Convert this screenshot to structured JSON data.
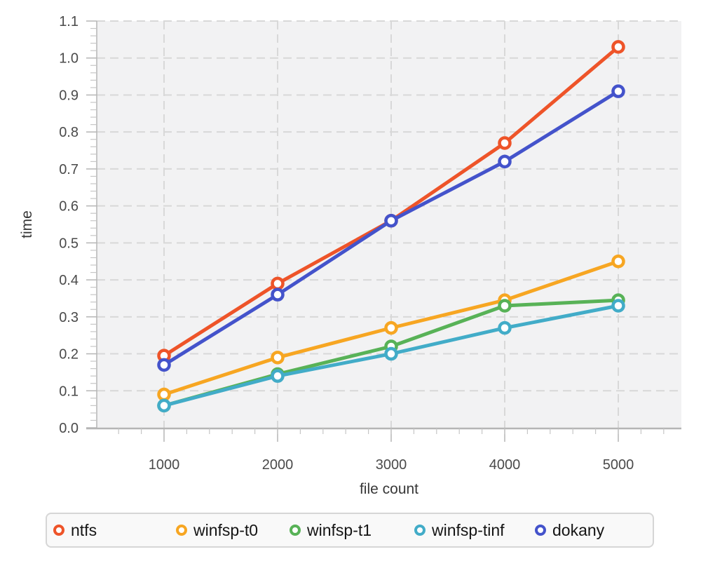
{
  "chart_data": {
    "type": "line",
    "title": "",
    "xlabel": "file count",
    "ylabel": "time",
    "x": [
      1000,
      2000,
      3000,
      4000,
      5000
    ],
    "xticklabels": [
      "1000",
      "2000",
      "3000",
      "4000",
      "5000"
    ],
    "yticklabels": [
      "0.0",
      "0.1",
      "0.2",
      "0.3",
      "0.4",
      "0.5",
      "0.6",
      "0.7",
      "0.8",
      "0.9",
      "1.0",
      "1.1"
    ],
    "ylim": [
      0.0,
      1.1
    ],
    "ytick_step": 0.1,
    "y_minor_step": 0.02,
    "x_minor_step": 200,
    "grid": "dashed",
    "legend_position": "bottom",
    "marker": "open-circle",
    "series": [
      {
        "name": "ntfs",
        "color": "#ee5429",
        "values": [
          0.195,
          0.39,
          0.56,
          0.77,
          1.03
        ]
      },
      {
        "name": "winfsp-t0",
        "color": "#f7a622",
        "values": [
          0.09,
          0.19,
          0.27,
          0.345,
          0.45
        ]
      },
      {
        "name": "winfsp-t1",
        "color": "#58b257",
        "values": [
          0.06,
          0.145,
          0.22,
          0.33,
          0.345
        ]
      },
      {
        "name": "winfsp-tinf",
        "color": "#42acc8",
        "values": [
          0.06,
          0.14,
          0.2,
          0.27,
          0.33
        ]
      },
      {
        "name": "dokany",
        "color": "#4453cb",
        "values": [
          0.17,
          0.36,
          0.56,
          0.72,
          0.91
        ]
      }
    ],
    "colors": {
      "panel_background": "#f2f2f3",
      "gridline": "#d8d8d8",
      "axis_line": "#b5b5b5",
      "tick_label": "#4a4a4a",
      "axis_title": "#383838"
    }
  }
}
